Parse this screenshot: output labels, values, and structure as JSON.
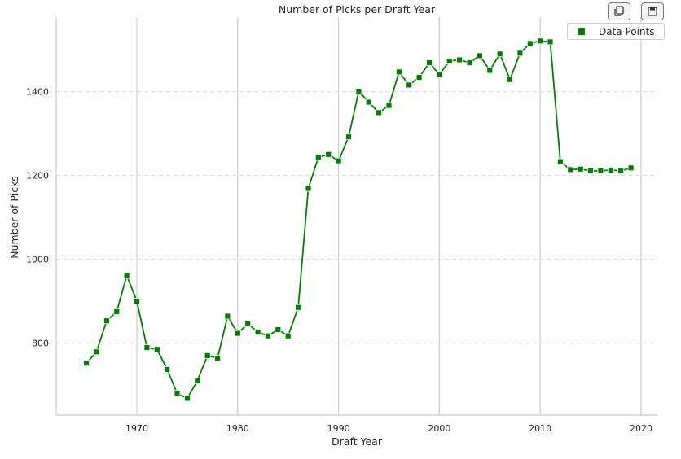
{
  "toolbar": {
    "copy_icon": "copy-icon",
    "save_icon": "save-icon"
  },
  "chart_data": {
    "type": "line",
    "title": "Number of Picks per Draft Year",
    "xlabel": "Draft Year",
    "ylabel": "Number of Picks",
    "xlim": [
      1962,
      2021.7
    ],
    "ylim": [
      628,
      1578
    ],
    "xticks": [
      1970,
      1980,
      1990,
      2000,
      2010,
      2020
    ],
    "yticks": [
      800,
      1000,
      1200,
      1400
    ],
    "grid": {
      "x": "solid",
      "y": "dashed"
    },
    "legend": {
      "placement": "top-right",
      "entries": [
        "Data Points"
      ]
    },
    "color": "#008000",
    "marker": "square",
    "series": [
      {
        "name": "Data Points",
        "x": [
          1965,
          1966,
          1967,
          1968,
          1969,
          1970,
          1971,
          1972,
          1973,
          1974,
          1975,
          1976,
          1977,
          1978,
          1979,
          1980,
          1981,
          1982,
          1983,
          1984,
          1985,
          1986,
          1987,
          1988,
          1989,
          1990,
          1991,
          1992,
          1993,
          1994,
          1995,
          1996,
          1997,
          1998,
          1999,
          2000,
          2001,
          2002,
          2003,
          2004,
          2005,
          2006,
          2007,
          2008,
          2009,
          2010,
          2011,
          2012,
          2013,
          2014,
          2015,
          2016,
          2017,
          2018,
          2019
        ],
        "y": [
          752,
          779,
          853,
          875,
          961,
          900,
          789,
          785,
          737,
          680,
          668,
          710,
          770,
          764,
          864,
          823,
          846,
          826,
          817,
          832,
          817,
          885,
          1169,
          1243,
          1250,
          1235,
          1292,
          1401,
          1375,
          1350,
          1367,
          1447,
          1416,
          1434,
          1469,
          1441,
          1473,
          1476,
          1469,
          1486,
          1451,
          1490,
          1429,
          1492,
          1515,
          1521,
          1519,
          1233,
          1214,
          1215,
          1211,
          1211,
          1213,
          1211,
          1218
        ]
      }
    ]
  }
}
